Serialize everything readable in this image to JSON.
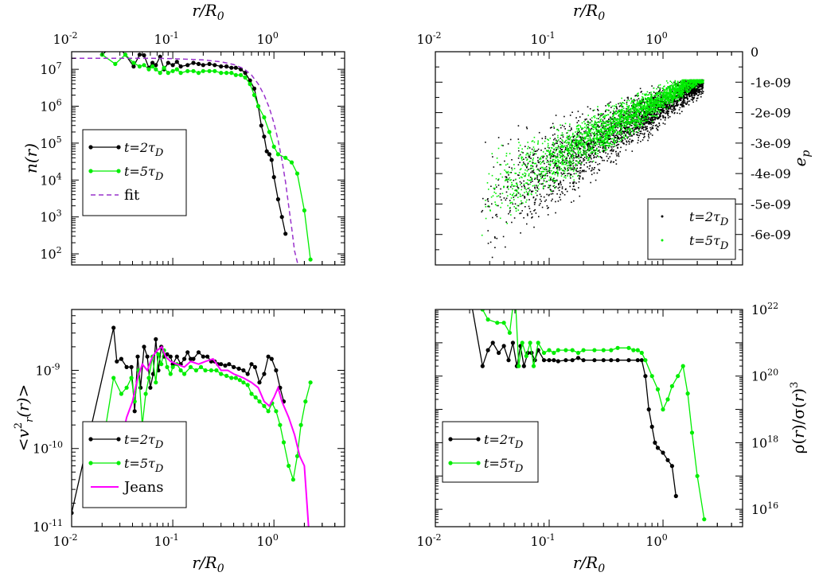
{
  "chart_data": [
    {
      "type": "line",
      "panel": "top-left",
      "ylabel": "n(r)",
      "xlabel_top": "r/R0",
      "xscale": "log",
      "yscale": "log",
      "xlim": [
        0.01,
        5
      ],
      "ylim": [
        50,
        30000000.0
      ],
      "x_ticklabels": [
        "10-2",
        "10-1",
        "100"
      ],
      "y_ticklabels": [
        "102",
        "103",
        "104",
        "105",
        "106",
        "107"
      ],
      "legend": "lower-left",
      "series": [
        {
          "name": "t=2τD",
          "color": "#000000",
          "style": "line-marker",
          "x": [
            0.02,
            0.027,
            0.034,
            0.041,
            0.047,
            0.052,
            0.058,
            0.063,
            0.068,
            0.075,
            0.082,
            0.09,
            0.1,
            0.11,
            0.12,
            0.14,
            0.16,
            0.18,
            0.2,
            0.23,
            0.26,
            0.3,
            0.34,
            0.38,
            0.42,
            0.47,
            0.52,
            0.58,
            0.64,
            0.7,
            0.75,
            0.8,
            0.85,
            0.9,
            0.95,
            1.0,
            1.1,
            1.2,
            1.3
          ],
          "y": [
            25000000.0,
            50000000.0,
            25000000.0,
            12000000.0,
            25000000.0,
            24000000.0,
            11000000.0,
            15000000.0,
            13000000.0,
            22000000.0,
            10000000.0,
            15000000.0,
            13000000.0,
            16000000.0,
            12000000.0,
            13000000.0,
            15000000.0,
            14000000.0,
            13000000.0,
            14000000.0,
            13000000.0,
            12000000.0,
            12000000.0,
            11000000.0,
            11000000.0,
            10000000.0,
            8000000.0,
            5000000.0,
            3000000.0,
            1000000.0,
            300000.0,
            150000.0,
            60000.0,
            50000.0,
            35000.0,
            12000.0,
            3000.0,
            1000.0,
            350.0
          ]
        },
        {
          "name": "t=5τD",
          "color": "#00ee00",
          "style": "line-marker",
          "x": [
            0.02,
            0.027,
            0.034,
            0.041,
            0.047,
            0.052,
            0.058,
            0.063,
            0.068,
            0.075,
            0.082,
            0.09,
            0.1,
            0.11,
            0.12,
            0.14,
            0.16,
            0.18,
            0.2,
            0.23,
            0.26,
            0.3,
            0.34,
            0.38,
            0.42,
            0.47,
            0.52,
            0.58,
            0.64,
            0.7,
            0.8,
            0.9,
            1.0,
            1.1,
            1.3,
            1.5,
            1.7,
            2.0,
            2.3
          ],
          "y": [
            25000000.0,
            14000000.0,
            25000000.0,
            15000000.0,
            12000000.0,
            13000000.0,
            10000000.0,
            12000000.0,
            10000000.0,
            8000000.0,
            11000000.0,
            8000000.0,
            9000000.0,
            10000000.0,
            8000000.0,
            9000000.0,
            9000000.0,
            8000000.0,
            9000000.0,
            9000000.0,
            9000000.0,
            8000000.0,
            8000000.0,
            8000000.0,
            7000000.0,
            7000000.0,
            6000000.0,
            4000000.0,
            2000000.0,
            1000000.0,
            500000.0,
            200000.0,
            80000.0,
            50000.0,
            40000.0,
            30000.0,
            15000.0,
            1500.0,
            70
          ]
        },
        {
          "name": "fit",
          "color": "#9932cc",
          "style": "dashed",
          "x": [
            0.01,
            0.03,
            0.06,
            0.1,
            0.2,
            0.3,
            0.4,
            0.5,
            0.6,
            0.7,
            0.8,
            0.9,
            1.0,
            1.1,
            1.2,
            1.3,
            1.4,
            1.5,
            1.6,
            1.7,
            1.8
          ],
          "y": [
            20000000.0,
            20000000.0,
            20000000.0,
            19500000.0,
            18000000.0,
            16000000.0,
            13500000.0,
            10500000.0,
            7000000.0,
            4000000.0,
            2000000.0,
            900000.0,
            350000.0,
            120000.0,
            35000.0,
            9000.0,
            2000.0,
            500.0,
            120.0,
            60,
            40
          ]
        }
      ]
    },
    {
      "type": "scatter",
      "panel": "top-right",
      "ylabel": "ep",
      "xlabel_top": "r/R0",
      "xscale": "log",
      "yscale": "linear",
      "xlim": [
        0.01,
        5
      ],
      "ylim": [
        -7e-09,
        0
      ],
      "x_ticklabels": [
        "10-2",
        "10-1",
        "100"
      ],
      "y_ticklabels": [
        "0",
        "-1e-09",
        "-2e-09",
        "-3e-09",
        "-4e-09",
        "-5e-09",
        "-6e-09"
      ],
      "legend": "lower-right",
      "series": [
        {
          "name": "t=2τD",
          "color": "#000000"
        },
        {
          "name": "t=5τD",
          "color": "#00ee00"
        }
      ]
    },
    {
      "type": "line",
      "panel": "bottom-left",
      "ylabel": "<vr2(r)>",
      "xlabel": "r/R0",
      "xscale": "log",
      "yscale": "log",
      "xlim": [
        0.01,
        5
      ],
      "ylim": [
        1e-11,
        6e-09
      ],
      "x_ticklabels": [
        "10-2",
        "10-1",
        "100"
      ],
      "y_ticklabels": [
        "10-11",
        "10-10",
        "10-9"
      ],
      "legend": "lower-left",
      "series": [
        {
          "name": "t=2τD",
          "color": "#000000",
          "style": "line-marker",
          "x": [
            0.01,
            0.026,
            0.028,
            0.031,
            0.035,
            0.039,
            0.042,
            0.045,
            0.048,
            0.052,
            0.056,
            0.06,
            0.064,
            0.068,
            0.072,
            0.077,
            0.082,
            0.088,
            0.095,
            0.1,
            0.11,
            0.12,
            0.13,
            0.14,
            0.15,
            0.16,
            0.18,
            0.2,
            0.22,
            0.24,
            0.26,
            0.28,
            0.3,
            0.33,
            0.36,
            0.4,
            0.45,
            0.5,
            0.55,
            0.6,
            0.65,
            0.72,
            0.8,
            0.88,
            0.95,
            1.05,
            1.15,
            1.25
          ],
          "y": [
            1.5e-11,
            3.5e-09,
            1.3e-09,
            1.4e-09,
            1.1e-09,
            1.1e-09,
            3e-10,
            1.5e-09,
            6e-10,
            2e-09,
            1.5e-09,
            6e-10,
            9e-10,
            2.5e-09,
            1e-09,
            2e-09,
            1.5e-09,
            1.6e-09,
            1.5e-09,
            1.2e-09,
            1.5e-09,
            1.2e-09,
            1.4e-09,
            1.7e-09,
            1.4e-09,
            1.4e-09,
            1.7e-09,
            1.5e-09,
            1.5e-09,
            1.3e-09,
            1.3e-09,
            1.2e-09,
            1.2e-09,
            1.15e-09,
            1.2e-09,
            1.1e-09,
            1.05e-09,
            1e-09,
            9e-10,
            1.2e-09,
            1.1e-09,
            7e-10,
            9e-10,
            1.5e-09,
            1.4e-09,
            1e-09,
            6e-10,
            4e-10
          ]
        },
        {
          "name": "t=5τD",
          "color": "#00ee00",
          "style": "line-marker",
          "x": [
            0.02,
            0.026,
            0.031,
            0.035,
            0.039,
            0.042,
            0.046,
            0.05,
            0.054,
            0.058,
            0.063,
            0.068,
            0.072,
            0.077,
            0.082,
            0.088,
            0.095,
            0.1,
            0.11,
            0.12,
            0.13,
            0.15,
            0.17,
            0.19,
            0.21,
            0.24,
            0.27,
            0.3,
            0.34,
            0.38,
            0.42,
            0.46,
            0.5,
            0.55,
            0.6,
            0.66,
            0.72,
            0.8,
            0.88,
            0.96,
            1.05,
            1.15,
            1.25,
            1.4,
            1.55,
            1.7,
            1.85,
            2.05,
            2.3
          ],
          "y": [
            1e-10,
            8e-10,
            5e-10,
            6e-10,
            8e-10,
            4e-10,
            1e-09,
            2e-10,
            5e-10,
            8e-10,
            1.5e-09,
            7e-10,
            1.6e-09,
            1.2e-09,
            1.8e-09,
            1.1e-09,
            9e-10,
            1.1e-09,
            1.2e-09,
            1e-09,
            9e-10,
            1.1e-09,
            1e-09,
            1.1e-09,
            1e-09,
            1e-09,
            1e-09,
            9e-10,
            8.5e-10,
            8e-10,
            8e-10,
            7.5e-10,
            7e-10,
            6.5e-10,
            5e-10,
            4.5e-10,
            4e-10,
            3.5e-10,
            3e-10,
            3.8e-10,
            3e-10,
            2e-10,
            1.2e-10,
            6e-11,
            4e-11,
            8e-11,
            2e-10,
            4e-10,
            7e-10
          ]
        },
        {
          "name": "Jeans",
          "color": "#ff00ff",
          "style": "line",
          "x": [
            0.026,
            0.03,
            0.035,
            0.04,
            0.045,
            0.05,
            0.056,
            0.063,
            0.07,
            0.078,
            0.085,
            0.095,
            0.11,
            0.13,
            0.15,
            0.18,
            0.21,
            0.25,
            0.3,
            0.35,
            0.4,
            0.5,
            0.6,
            0.7,
            0.8,
            0.9,
            1.0,
            1.1,
            1.2,
            1.4,
            1.6,
            1.8,
            2.0,
            2.2
          ],
          "y": [
            3e-11,
            1e-10,
            2.5e-10,
            4e-10,
            8e-10,
            1.2e-09,
            1e-09,
            1.5e-09,
            1.8e-09,
            2e-09,
            1.5e-09,
            1.3e-09,
            1.2e-09,
            1.1e-09,
            1.3e-09,
            1.2e-09,
            1.3e-09,
            1.4e-09,
            1e-09,
            1e-09,
            9e-10,
            8e-10,
            7e-10,
            6e-10,
            4e-10,
            3.5e-10,
            4.5e-10,
            6e-10,
            4e-10,
            2.5e-10,
            1.5e-10,
            8e-11,
            6e-11,
            1e-11
          ]
        }
      ]
    },
    {
      "type": "line",
      "panel": "bottom-right",
      "ylabel": "ρ(r)/σ(r)3",
      "xlabel": "r/R0",
      "xscale": "log",
      "yscale": "log",
      "xlim": [
        0.01,
        5
      ],
      "ylim": [
        3000000000000000.0,
        1e+22
      ],
      "x_ticklabels": [
        "10-2",
        "10-1",
        "100"
      ],
      "y_ticklabels": [
        "1016",
        "1018",
        "1020",
        "1022"
      ],
      "legend": "lower-left",
      "series": [
        {
          "name": "t=2τD",
          "color": "#000000",
          "style": "line-marker",
          "x": [
            0.02,
            0.026,
            0.029,
            0.032,
            0.036,
            0.04,
            0.044,
            0.048,
            0.052,
            0.056,
            0.06,
            0.065,
            0.07,
            0.075,
            0.08,
            0.09,
            0.1,
            0.11,
            0.12,
            0.14,
            0.16,
            0.18,
            0.2,
            0.25,
            0.3,
            0.35,
            0.4,
            0.5,
            0.6,
            0.65,
            0.7,
            0.75,
            0.8,
            0.85,
            0.9,
            1.0,
            1.1,
            1.2,
            1.3
          ],
          "y": [
            3e+22,
            2e+20,
            6e+20,
            1e+21,
            5e+20,
            8e+20,
            3e+20,
            1e+21,
            2e+20,
            8e+20,
            2e+20,
            5e+20,
            5e+20,
            3e+20,
            6e+20,
            3e+20,
            3e+20,
            3e+20,
            2.8e+20,
            3e+20,
            3e+20,
            3.5e+20,
            3e+20,
            3e+20,
            3e+20,
            3e+20,
            3e+20,
            3e+20,
            3e+20,
            3e+20,
            1e+20,
            1e+19,
            3e+18,
            1e+18,
            7e+17,
            5e+17,
            3e+17,
            2e+17,
            2.5e+16
          ]
        },
        {
          "name": "t=5τD",
          "color": "#00ee00",
          "style": "line-marker",
          "x": [
            0.026,
            0.029,
            0.035,
            0.04,
            0.045,
            0.05,
            0.054,
            0.058,
            0.063,
            0.068,
            0.073,
            0.08,
            0.09,
            0.1,
            0.11,
            0.12,
            0.14,
            0.16,
            0.18,
            0.2,
            0.25,
            0.3,
            0.35,
            0.4,
            0.5,
            0.55,
            0.6,
            0.65,
            0.7,
            0.8,
            0.9,
            1.0,
            1.1,
            1.2,
            1.35,
            1.5,
            1.65,
            1.8,
            2.0,
            2.3
          ],
          "y": [
            1e+22,
            5e+21,
            4e+21,
            4e+21,
            2e+21,
            4e+22,
            2e+20,
            1e+21,
            4e+20,
            1e+21,
            2e+20,
            1e+21,
            5e+20,
            6e+20,
            5e+20,
            6e+20,
            6e+20,
            6e+20,
            5e+20,
            6e+20,
            6e+20,
            6e+20,
            6e+20,
            7e+20,
            7e+20,
            6e+20,
            6e+20,
            5e+20,
            3e+20,
            1e+20,
            4e+19,
            1e+19,
            2e+19,
            5e+19,
            1e+20,
            2e+20,
            3e+19,
            2e+18,
            1e+17,
            5000000000000000.0
          ]
        }
      ]
    }
  ],
  "icons": {
    "marker": "filled-circle"
  }
}
